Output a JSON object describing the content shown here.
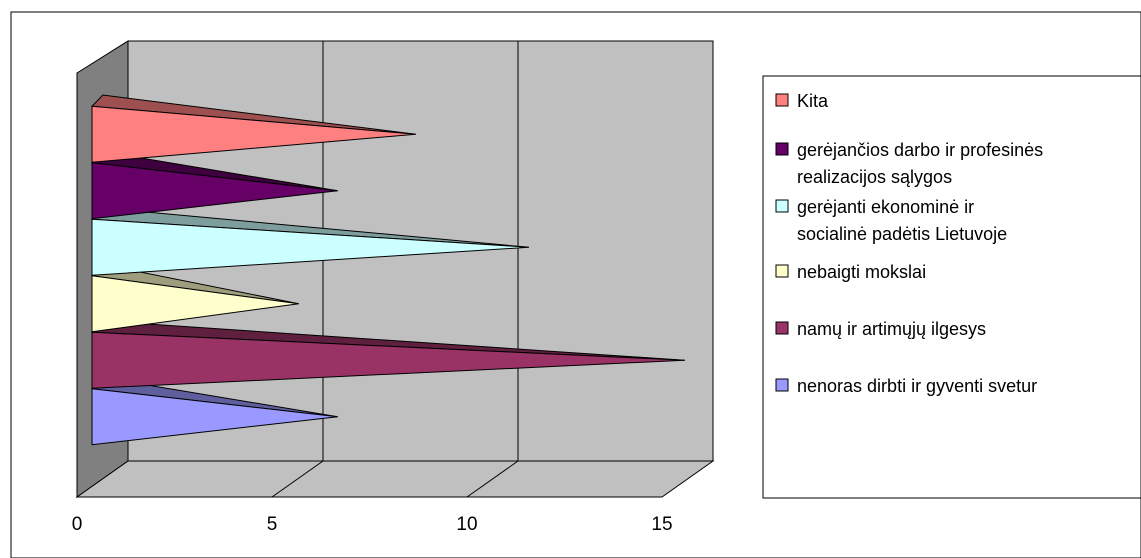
{
  "chart_data": {
    "type": "bar",
    "style": "3d-horizontal-cone",
    "orientation": "horizontal",
    "title": "",
    "xlabel": "",
    "ylabel": "",
    "xlim": [
      0,
      15
    ],
    "x_ticks": [
      "0",
      "5",
      "10",
      "15"
    ],
    "grid": true,
    "legend_position": "right",
    "categories": [
      "nenoras dirbti ir gyventi svetur",
      "namų ir artimųjų ilgesys",
      "nebaigti mokslai",
      "gerėjanti ekonominė ir socialinė padėtis Lietuvoje",
      "gerėjančios darbo ir profesinės realizacijos sąlygos",
      "Kita"
    ],
    "values": [
      6.3,
      15.2,
      5.3,
      11.2,
      6.3,
      8.3
    ],
    "colors": [
      "#9999ff",
      "#993366",
      "#ffffcc",
      "#ccffff",
      "#660066",
      "#ff8080"
    ],
    "wall_color": "#c0c0c0",
    "wall_side_color": "#808080"
  },
  "legend": {
    "items": [
      {
        "lines": [
          "Kita"
        ],
        "color": "#ff8080"
      },
      {
        "lines": [
          "gerėjančios darbo ir profesinės",
          "realizacijos sąlygos"
        ],
        "color": "#660066"
      },
      {
        "lines": [
          "gerėjanti ekonominė ir",
          "socialinė padėtis Lietuvoje"
        ],
        "color": "#ccffff"
      },
      {
        "lines": [
          "nebaigti mokslai"
        ],
        "color": "#ffffcc"
      },
      {
        "lines": [
          "namų ir artimųjų ilgesys"
        ],
        "color": "#993366"
      },
      {
        "lines": [
          "nenoras dirbti ir gyventi svetur"
        ],
        "color": "#9999ff"
      }
    ]
  }
}
